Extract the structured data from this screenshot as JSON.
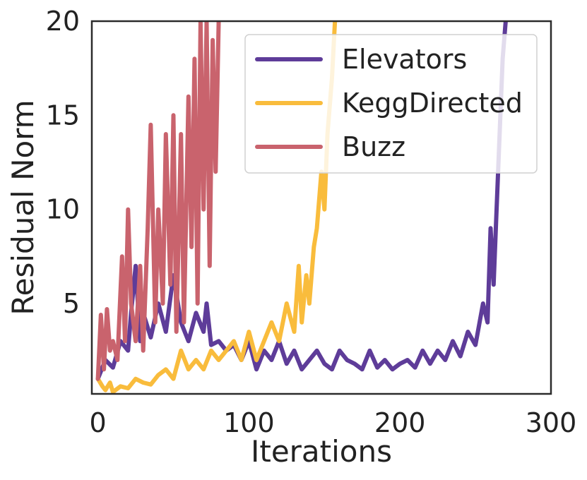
{
  "chart_data": {
    "type": "line",
    "title": "",
    "xlabel": "Iterations",
    "ylabel": "Residual Norm",
    "xlim": [
      -4,
      300
    ],
    "ylim": [
      0.2,
      20
    ],
    "xticks": [
      0,
      100,
      200,
      300
    ],
    "yticks": [
      5,
      10,
      15,
      20
    ],
    "grid": false,
    "legend_position": "top-right",
    "series": [
      {
        "name": "Elevators",
        "color": "#5e3c99",
        "x": [
          0,
          5,
          10,
          15,
          20,
          22,
          25,
          28,
          30,
          35,
          40,
          45,
          50,
          55,
          60,
          65,
          70,
          72,
          75,
          80,
          85,
          90,
          95,
          100,
          105,
          110,
          115,
          120,
          125,
          130,
          135,
          140,
          145,
          150,
          155,
          160,
          165,
          170,
          175,
          180,
          185,
          190,
          195,
          200,
          205,
          210,
          215,
          220,
          225,
          230,
          235,
          240,
          245,
          250,
          255,
          258,
          260,
          262,
          264,
          266,
          268,
          270
        ],
        "values": [
          1.0,
          2.0,
          1.6,
          3.0,
          2.5,
          4.5,
          7.0,
          3.0,
          4.5,
          3.2,
          5.0,
          3.5,
          6.5,
          4.0,
          3.0,
          4.5,
          3.5,
          5.0,
          2.8,
          3.0,
          2.5,
          2.8,
          2.0,
          3.0,
          1.5,
          2.5,
          2.0,
          3.0,
          1.8,
          2.5,
          1.5,
          2.0,
          2.5,
          1.8,
          1.5,
          2.5,
          2.0,
          1.8,
          1.5,
          2.5,
          1.6,
          2.0,
          1.5,
          1.8,
          2.0,
          1.6,
          2.5,
          1.8,
          2.5,
          2.0,
          3.0,
          2.2,
          3.5,
          2.8,
          5.0,
          4.0,
          9.0,
          6.0,
          10.0,
          14.0,
          18.0,
          20.0
        ]
      },
      {
        "name": "KeggDirected",
        "color": "#f9bc3c",
        "x": [
          0,
          3,
          5,
          8,
          10,
          15,
          20,
          25,
          30,
          35,
          40,
          45,
          50,
          55,
          60,
          65,
          70,
          75,
          80,
          85,
          90,
          95,
          100,
          105,
          110,
          115,
          120,
          125,
          130,
          133,
          135,
          138,
          140,
          143,
          145,
          148,
          150,
          152,
          155,
          157
        ],
        "values": [
          1.0,
          0.6,
          0.4,
          0.8,
          0.3,
          0.6,
          0.5,
          1.0,
          0.8,
          0.7,
          1.2,
          1.5,
          1.0,
          2.5,
          1.5,
          2.0,
          1.5,
          2.5,
          2.0,
          2.5,
          3.0,
          2.0,
          3.5,
          2.0,
          3.0,
          4.0,
          3.0,
          5.0,
          3.5,
          7.0,
          4.0,
          6.5,
          5.0,
          8.0,
          9.0,
          12.0,
          10.0,
          14.0,
          17.0,
          20.0
        ]
      },
      {
        "name": "Buzz",
        "color": "#c9636d",
        "x": [
          0,
          2,
          4,
          6,
          8,
          10,
          13,
          16,
          18,
          20,
          22,
          25,
          28,
          30,
          33,
          35,
          38,
          40,
          43,
          45,
          48,
          50,
          52,
          55,
          57,
          60,
          62,
          64,
          66,
          68,
          70,
          72,
          74,
          76,
          78,
          80
        ],
        "values": [
          1.0,
          4.4,
          1.5,
          4.7,
          2.5,
          3.0,
          2.0,
          7.5,
          3.0,
          10.0,
          5.0,
          3.0,
          7.0,
          2.5,
          9.0,
          14.5,
          4.0,
          10.0,
          5.0,
          14.0,
          6.0,
          15.0,
          3.5,
          14.0,
          4.0,
          16.0,
          8.0,
          18.0,
          5.0,
          20.0,
          10.0,
          20.0,
          7.0,
          19.0,
          12.0,
          20.0
        ]
      }
    ]
  }
}
